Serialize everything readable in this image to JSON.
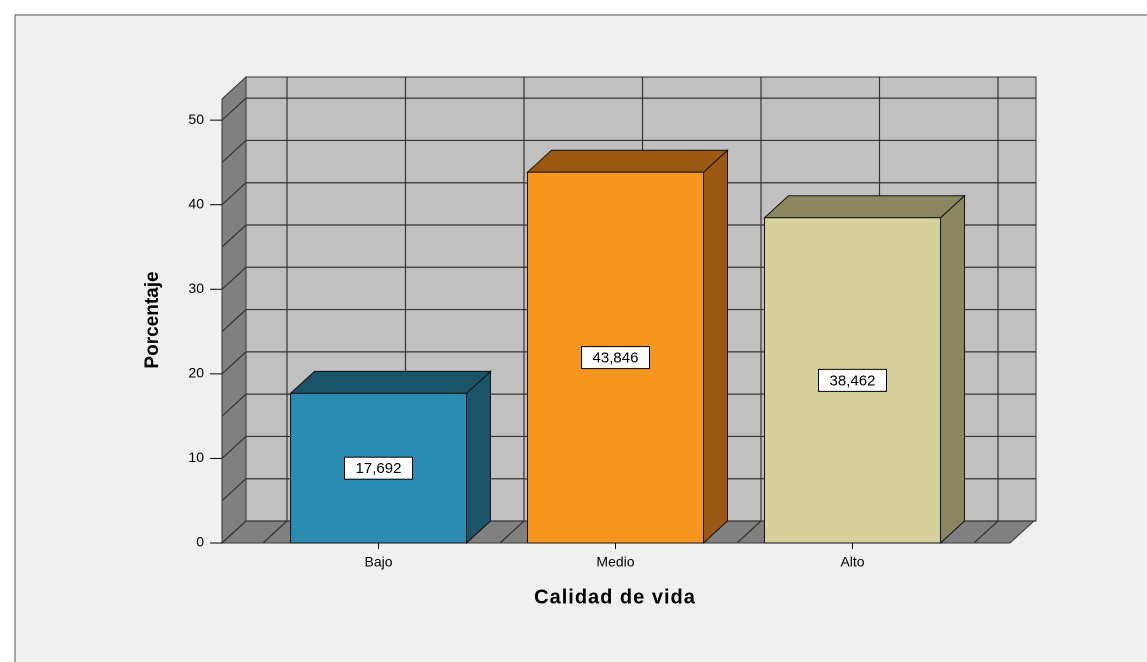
{
  "chart_data": {
    "type": "bar3d",
    "x_label": "Calidad de vida",
    "y_label": "Porcentaje",
    "categories": [
      "Bajo",
      "Medio",
      "Alto"
    ],
    "values": [
      17.692,
      43.846,
      38.462
    ],
    "value_labels": [
      "17,692",
      "43,846",
      "38,462"
    ],
    "colors": [
      "#2a8cb0",
      "#f7961e",
      "#d6d09b"
    ],
    "shade_colors": [
      "#1a5469",
      "#9a5812",
      "#8a8660"
    ],
    "ylim": [
      0,
      52.5
    ],
    "yticks": [
      0,
      10,
      20,
      30,
      40,
      50
    ],
    "grid": true
  }
}
